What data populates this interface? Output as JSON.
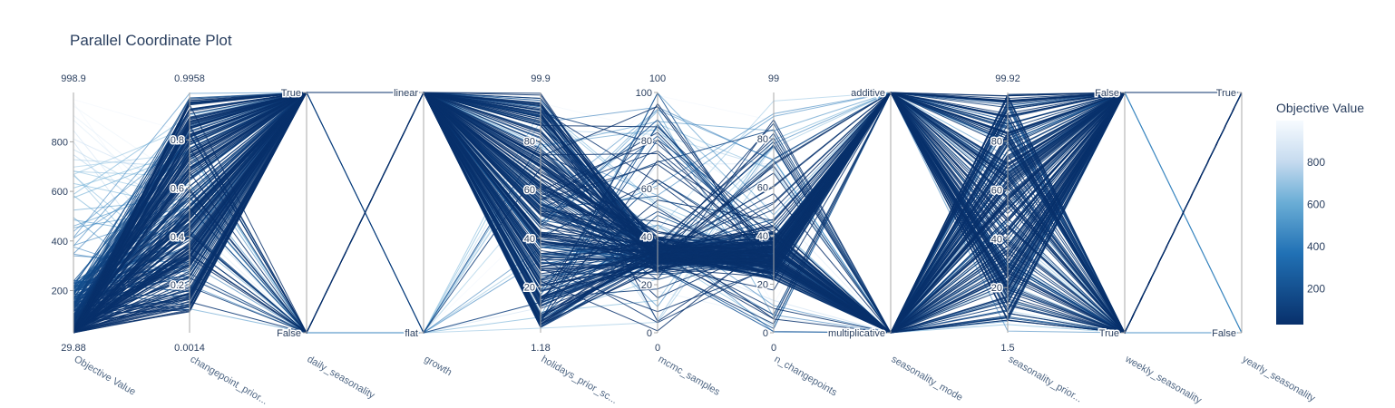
{
  "chart_data": {
    "type": "parallel_coordinates",
    "title": "Parallel Coordinate Plot",
    "colorscale": {
      "title": "Objective Value",
      "ticks": [
        200,
        400,
        600,
        800
      ],
      "range": [
        29.88,
        998.9
      ],
      "low_color": "#08306b",
      "high_color": "#f7fbff"
    },
    "line_color": "#1f4e8c",
    "dimensions": [
      {
        "label": "Objective Value",
        "range_labels": [
          "998.9",
          "29.88"
        ],
        "tick_values": [
          200,
          400,
          600,
          800
        ],
        "tick_labels": [
          "200",
          "400",
          "600",
          "800"
        ],
        "min": 29.88,
        "max": 998.9
      },
      {
        "label": "changepoint_prior...",
        "range_labels": [
          "0.9958",
          "0.0014"
        ],
        "tick_values": [
          0.2,
          0.4,
          0.6,
          0.8
        ],
        "tick_labels": [
          "0.2",
          "0.4",
          "0.6",
          "0.8"
        ],
        "min": 0.0014,
        "max": 0.9958
      },
      {
        "label": "daily_seasonality",
        "categorical": true,
        "range_labels": [
          "",
          ""
        ],
        "tick_values": [
          0,
          1
        ],
        "tick_labels": [
          "False",
          "True"
        ],
        "min": 0,
        "max": 1
      },
      {
        "label": "growth",
        "categorical": true,
        "range_labels": [
          "",
          ""
        ],
        "tick_values": [
          0,
          1
        ],
        "tick_labels": [
          "flat",
          "linear"
        ],
        "min": 0,
        "max": 1
      },
      {
        "label": "holidays_prior_sc...",
        "range_labels": [
          "99.9",
          "1.18"
        ],
        "tick_values": [
          20,
          40,
          60,
          80
        ],
        "tick_labels": [
          "20",
          "40",
          "60",
          "80"
        ],
        "min": 1.18,
        "max": 99.9
      },
      {
        "label": "mcmc_samples",
        "range_labels": [
          "100",
          "0"
        ],
        "tick_values": [
          0,
          20,
          40,
          60,
          80,
          100
        ],
        "tick_labels": [
          "0",
          "20",
          "40",
          "60",
          "80",
          "100"
        ],
        "min": 0,
        "max": 100
      },
      {
        "label": "n_changepoints",
        "range_labels": [
          "99",
          "0"
        ],
        "tick_values": [
          0,
          20,
          40,
          60,
          80
        ],
        "tick_labels": [
          "0",
          "20",
          "40",
          "60",
          "80"
        ],
        "min": 0,
        "max": 99
      },
      {
        "label": "seasonality_mode",
        "categorical": true,
        "range_labels": [
          "",
          ""
        ],
        "tick_values": [
          0,
          1
        ],
        "tick_labels": [
          "multiplicative",
          "additive"
        ],
        "min": 0,
        "max": 1
      },
      {
        "label": "seasonality_prior...",
        "range_labels": [
          "99.92",
          "1.5"
        ],
        "tick_values": [
          20,
          40,
          60,
          80
        ],
        "tick_labels": [
          "20",
          "40",
          "60",
          "80"
        ],
        "min": 1.5,
        "max": 99.92
      },
      {
        "label": "weekly_seasonality",
        "categorical": true,
        "range_labels": [
          "",
          ""
        ],
        "tick_values": [
          0,
          1
        ],
        "tick_labels": [
          "True",
          "False"
        ],
        "min": 0,
        "max": 1
      },
      {
        "label": "yearly_seasonality",
        "categorical": true,
        "range_labels": [
          "",
          ""
        ],
        "tick_values": [
          0,
          1
        ],
        "tick_labels": [
          "False",
          "True"
        ],
        "min": 0,
        "max": 1
      }
    ],
    "line_count": 300
  }
}
